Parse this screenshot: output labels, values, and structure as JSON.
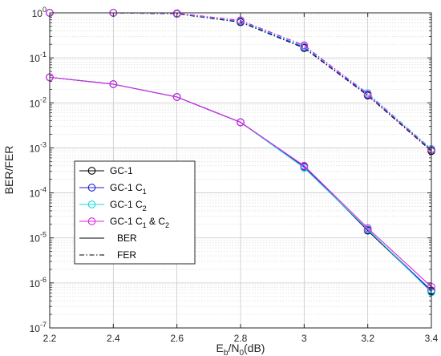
{
  "chart_data": {
    "type": "line",
    "xlabel": {
      "main": "E",
      "sub1": "b",
      "mid": "/N",
      "sub2": "0",
      "tail": "(dB)"
    },
    "ylabel": "BER/FER",
    "xlim": [
      2.2,
      3.4
    ],
    "ylim": [
      1e-07,
      1
    ],
    "yscale": "log",
    "grid": true,
    "minor_grid": true,
    "x": [
      2.2,
      2.4,
      2.6,
      2.8,
      3.0,
      3.2,
      3.4
    ],
    "x_ticks": [
      "2.2",
      "2.4",
      "2.6",
      "2.8",
      "3",
      "3.2",
      "3.4"
    ],
    "y_ticks": [
      {
        "base": "10",
        "exp": "0"
      },
      {
        "base": "10",
        "exp": "-1"
      },
      {
        "base": "10",
        "exp": "-2"
      },
      {
        "base": "10",
        "exp": "-3"
      },
      {
        "base": "10",
        "exp": "-4"
      },
      {
        "base": "10",
        "exp": "-5"
      },
      {
        "base": "10",
        "exp": "-6"
      },
      {
        "base": "10",
        "exp": "-7"
      }
    ],
    "legend_position": "left-bottom",
    "series": [
      {
        "name": "GC-1",
        "color": "#000000",
        "metric": "FER",
        "style": "dashdot",
        "values": [
          1.0,
          1.0,
          0.95,
          0.62,
          0.165,
          0.0145,
          0.00085
        ]
      },
      {
        "name": "GC-1 C1",
        "color": "#1f1fd6",
        "metric": "FER",
        "style": "dashdot",
        "values": [
          1.0,
          1.0,
          0.96,
          0.64,
          0.17,
          0.015,
          0.0009
        ]
      },
      {
        "name": "GC-1 C2",
        "color": "#19d9e0",
        "metric": "FER",
        "style": "dashdot",
        "values": [
          1.0,
          1.0,
          0.97,
          0.66,
          0.18,
          0.0165,
          0.00095
        ]
      },
      {
        "name": "GC-1 C1 & C2",
        "color": "#e020e0",
        "metric": "FER",
        "style": "dashdot",
        "values": [
          1.0,
          1.0,
          0.98,
          0.68,
          0.19,
          0.0155,
          0.0009
        ]
      },
      {
        "name": "GC-1",
        "color": "#000000",
        "metric": "BER",
        "style": "solid",
        "values": [
          0.037,
          0.026,
          0.0135,
          0.0037,
          0.00039,
          1.45e-05,
          6.5e-07
        ]
      },
      {
        "name": "GC-1 C1",
        "color": "#1f1fd6",
        "metric": "BER",
        "style": "solid",
        "values": [
          0.037,
          0.026,
          0.0135,
          0.0037,
          0.00038,
          1.5e-05,
          6.8e-07
        ]
      },
      {
        "name": "GC-1 C2",
        "color": "#19d9e0",
        "metric": "BER",
        "style": "solid",
        "values": [
          0.037,
          0.026,
          0.0135,
          0.0037,
          0.00036,
          1.55e-05,
          6.2e-07
        ]
      },
      {
        "name": "GC-1 C1 & C2",
        "color": "#e020e0",
        "metric": "BER",
        "style": "solid",
        "values": [
          0.037,
          0.026,
          0.0135,
          0.0037,
          0.0004,
          1.65e-05,
          8.2e-07
        ]
      }
    ],
    "legend": [
      {
        "kind": "marker",
        "color": "#000000",
        "label": {
          "main": "GC-1"
        }
      },
      {
        "kind": "marker",
        "color": "#1f1fd6",
        "label": {
          "main": "GC-1 C",
          "sub": "1"
        }
      },
      {
        "kind": "marker",
        "color": "#19d9e0",
        "label": {
          "main": "GC-1 C",
          "sub": "2"
        }
      },
      {
        "kind": "marker",
        "color": "#e020e0",
        "label": {
          "main": "GC-1 C",
          "sub": "1",
          "mid": " & C",
          "sub2": "2"
        }
      },
      {
        "kind": "solid",
        "color": "#000000",
        "label": {
          "main": "BER"
        }
      },
      {
        "kind": "dashdot",
        "color": "#000000",
        "label": {
          "main": "FER"
        }
      }
    ]
  }
}
